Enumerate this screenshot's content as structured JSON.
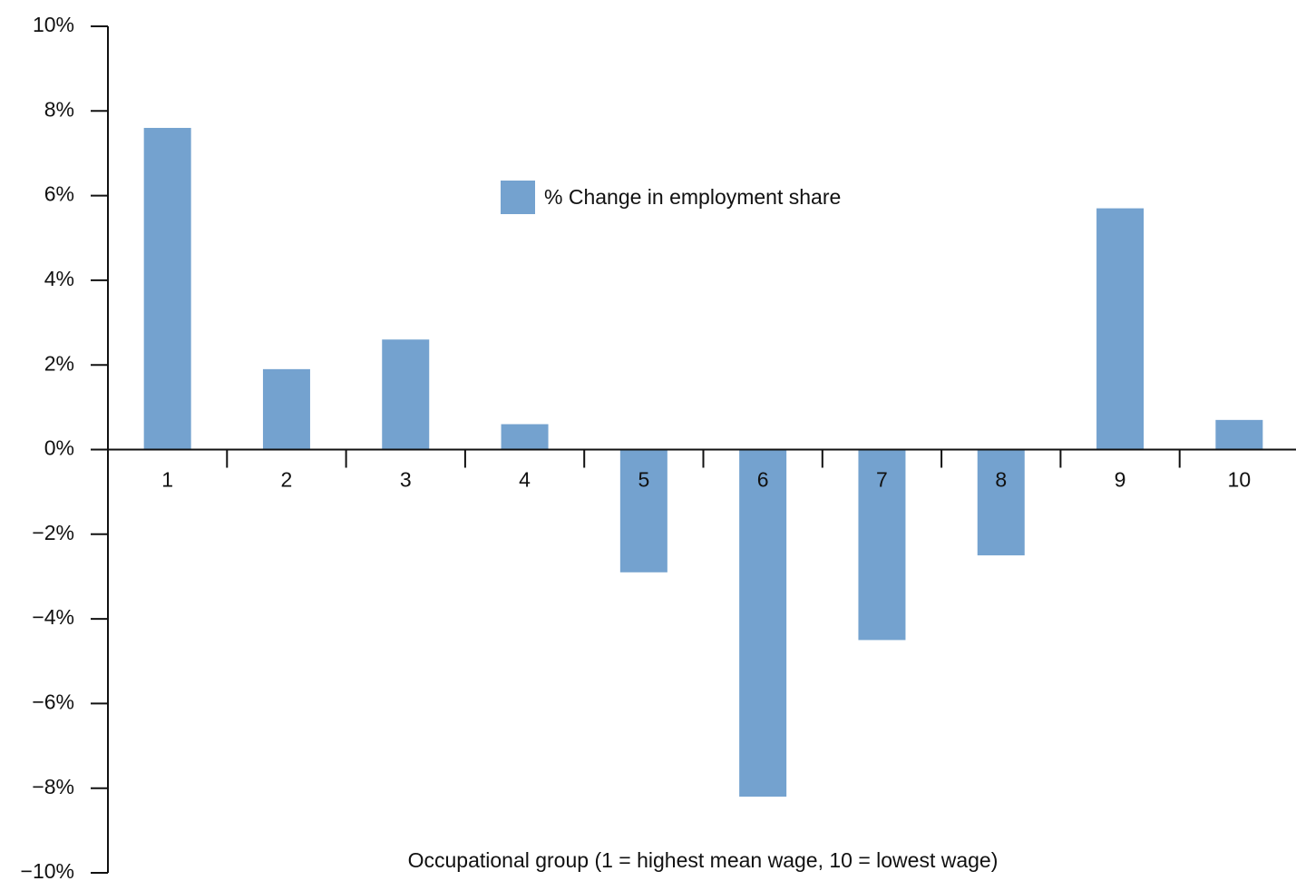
{
  "chart_data": {
    "type": "bar",
    "x_label": "Occupational group (1 = highest mean wage, 10 = lowest wage)",
    "categories": [
      "1",
      "2",
      "3",
      "4",
      "5",
      "6",
      "7",
      "8",
      "9",
      "10"
    ],
    "series": [
      {
        "name": "% Change in employment share",
        "color": "#74a2cf",
        "values": [
          7.6,
          1.9,
          2.6,
          0.6,
          -2.9,
          -8.2,
          -4.5,
          -2.5,
          5.7,
          0.7
        ]
      }
    ],
    "ylim": [
      -10,
      10
    ],
    "yticks": [
      {
        "value": -10,
        "label": "−10%"
      },
      {
        "value": -8,
        "label": "−8%"
      },
      {
        "value": -6,
        "label": "−6%"
      },
      {
        "value": -4,
        "label": "−4%"
      },
      {
        "value": -2,
        "label": "−2%"
      },
      {
        "value": 0,
        "label": "0%"
      },
      {
        "value": 2,
        "label": "2%"
      },
      {
        "value": 4,
        "label": "4%"
      },
      {
        "value": 6,
        "label": "6%"
      },
      {
        "value": 8,
        "label": "8%"
      },
      {
        "value": 10,
        "label": "10%"
      }
    ],
    "grid": false,
    "legend": "top"
  }
}
